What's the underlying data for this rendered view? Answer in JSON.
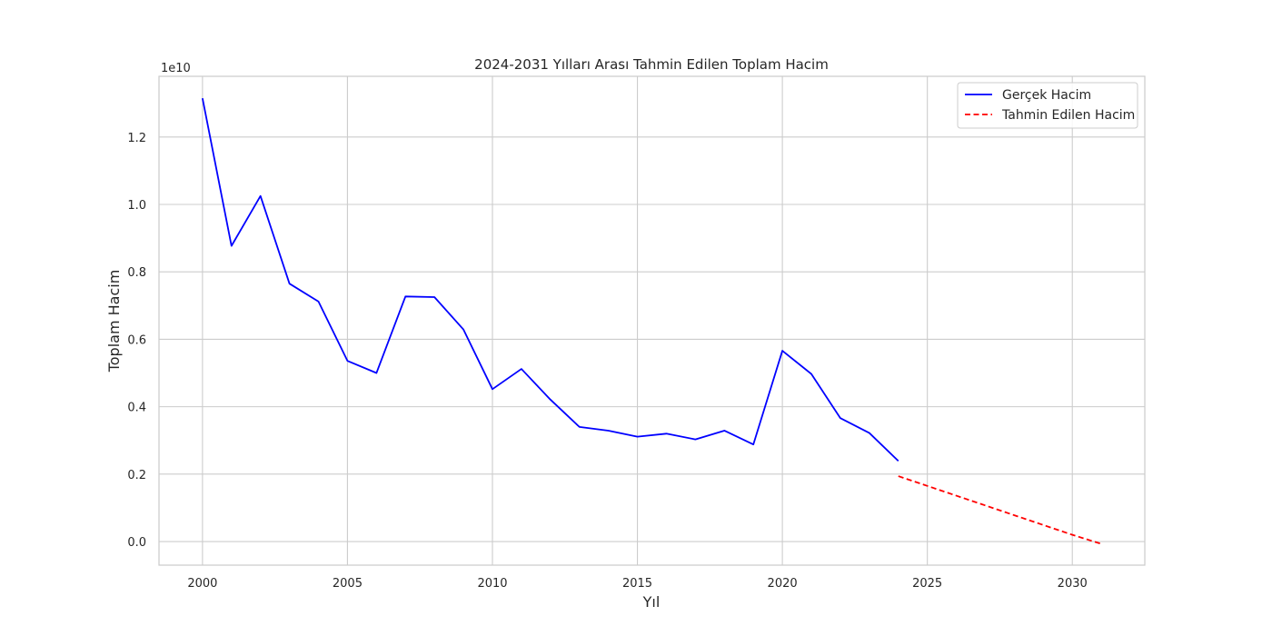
{
  "chart_data": {
    "type": "line",
    "title": "2024-2031 Yılları Arası Tahmin Edilen Toplam Hacim",
    "xlabel": "Yıl",
    "ylabel": "Toplam Hacim",
    "y_offset_label": "1e10",
    "xlim": [
      1998.5,
      2032.5
    ],
    "ylim": [
      -0.07,
      1.38
    ],
    "x_ticks": [
      2000,
      2005,
      2010,
      2015,
      2020,
      2025,
      2030
    ],
    "y_ticks": [
      0.0,
      0.2,
      0.4,
      0.6,
      0.8,
      1.0,
      1.2
    ],
    "y_tick_labels": [
      "0.0",
      "0.2",
      "0.4",
      "0.6",
      "0.8",
      "1.0",
      "1.2"
    ],
    "grid": true,
    "legend_position": "top-right",
    "series": [
      {
        "name": "Gerçek Hacim",
        "color": "#0000ff",
        "style": "solid",
        "x": [
          2000,
          2001,
          2002,
          2003,
          2004,
          2005,
          2006,
          2007,
          2008,
          2009,
          2010,
          2011,
          2012,
          2013,
          2014,
          2015,
          2016,
          2017,
          2018,
          2019,
          2020,
          2021,
          2022,
          2023,
          2024
        ],
        "y": [
          1.315,
          0.877,
          1.025,
          0.765,
          0.712,
          0.536,
          0.5,
          0.727,
          0.725,
          0.629,
          0.452,
          0.512,
          0.421,
          0.34,
          0.329,
          0.311,
          0.32,
          0.303,
          0.329,
          0.288,
          0.566,
          0.497,
          0.366,
          0.322,
          0.239
        ]
      },
      {
        "name": "Tahmin Edilen Hacim",
        "color": "#ff0000",
        "style": "dashed",
        "x": [
          2024,
          2025,
          2026,
          2027,
          2028,
          2029,
          2030,
          2031
        ],
        "y": [
          0.194,
          0.165,
          0.136,
          0.107,
          0.078,
          0.049,
          0.02,
          -0.007
        ]
      }
    ]
  }
}
